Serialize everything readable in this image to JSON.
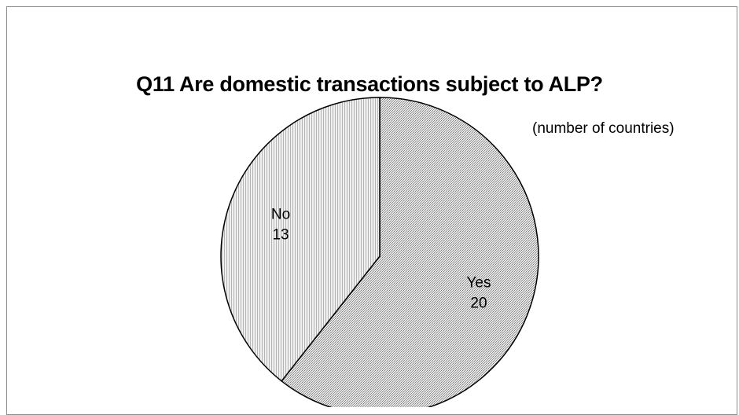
{
  "chart_data": {
    "type": "pie",
    "title": "Q11 Are domestic transactions subject to ALP?",
    "subtitle": "(number of countries)",
    "slices": [
      {
        "label": "Yes",
        "value": 20
      },
      {
        "label": "No",
        "value": 13
      }
    ],
    "colors": {
      "yes_fill": "#c8c8c8",
      "no_fill": "#dedede",
      "border": "#000000"
    }
  }
}
